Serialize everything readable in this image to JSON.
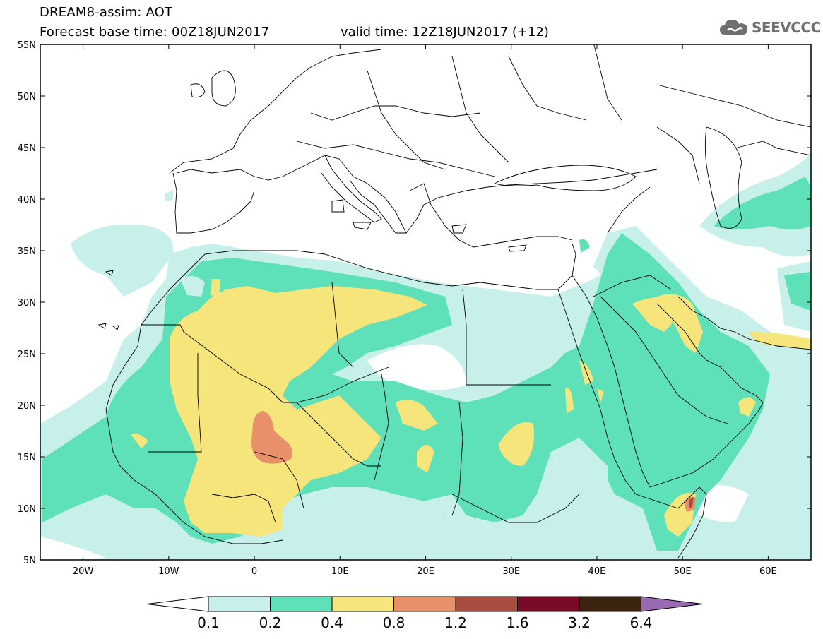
{
  "title": {
    "line1": "DREAM8-assim: AOT",
    "base_time": "Forecast base time: 00Z18JUN2017",
    "valid_time": "valid time: 12Z18JUN2017 (+12)"
  },
  "logo": {
    "text": "SEEVCCC",
    "icon": "cloud-icon"
  },
  "map": {
    "lon_range": [
      -25,
      65
    ],
    "lat_range": [
      5,
      55
    ],
    "x_ticks": [
      "20W",
      "10W",
      "0",
      "10E",
      "20E",
      "30E",
      "40E",
      "50E",
      "60E"
    ],
    "y_ticks": [
      "55N",
      "50N",
      "45N",
      "40N",
      "35N",
      "30N",
      "25N",
      "20N",
      "15N",
      "10N",
      "5N"
    ]
  },
  "colorbar": {
    "labels": [
      "0.1",
      "0.2",
      "0.4",
      "0.8",
      "1.2",
      "1.6",
      "3.2",
      "6.4"
    ],
    "colors": [
      "#ffffff",
      "#c8f0ea",
      "#5ee0b8",
      "#f5e57a",
      "#e8906a",
      "#a84e40",
      "#7a0a25",
      "#3a2410",
      "#9a6ab0"
    ]
  },
  "colors": {
    "aot_01_02": "#c8f0ea",
    "aot_02_04": "#5ee0b8",
    "aot_04_08": "#f5e57a",
    "aot_08_12": "#e8906a",
    "aot_12_16": "#a84e40"
  }
}
